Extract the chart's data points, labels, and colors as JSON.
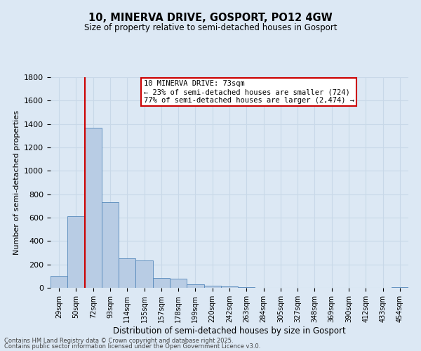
{
  "title1": "10, MINERVA DRIVE, GOSPORT, PO12 4GW",
  "title2": "Size of property relative to semi-detached houses in Gosport",
  "xlabel": "Distribution of semi-detached houses by size in Gosport",
  "ylabel": "Number of semi-detached properties",
  "categories": [
    "29sqm",
    "50sqm",
    "72sqm",
    "93sqm",
    "114sqm",
    "135sqm",
    "157sqm",
    "178sqm",
    "199sqm",
    "220sqm",
    "242sqm",
    "263sqm",
    "284sqm",
    "305sqm",
    "327sqm",
    "348sqm",
    "369sqm",
    "390sqm",
    "412sqm",
    "433sqm",
    "454sqm"
  ],
  "values": [
    100,
    615,
    1370,
    730,
    250,
    235,
    85,
    80,
    30,
    20,
    15,
    5,
    0,
    0,
    0,
    0,
    0,
    0,
    0,
    0,
    5
  ],
  "bar_color": "#b8cce4",
  "bar_edge_color": "#5588bb",
  "vline_x_index": 2,
  "annotation_text": "10 MINERVA DRIVE: 73sqm\n← 23% of semi-detached houses are smaller (724)\n77% of semi-detached houses are larger (2,474) →",
  "box_facecolor": "#ffffff",
  "box_edgecolor": "#cc0000",
  "vline_color": "#cc0000",
  "ylim": [
    0,
    1800
  ],
  "yticks": [
    0,
    200,
    400,
    600,
    800,
    1000,
    1200,
    1400,
    1600,
    1800
  ],
  "grid_color": "#c8d8e8",
  "bg_color": "#dce8f4",
  "footer1": "Contains HM Land Registry data © Crown copyright and database right 2025.",
  "footer2": "Contains public sector information licensed under the Open Government Licence v3.0."
}
